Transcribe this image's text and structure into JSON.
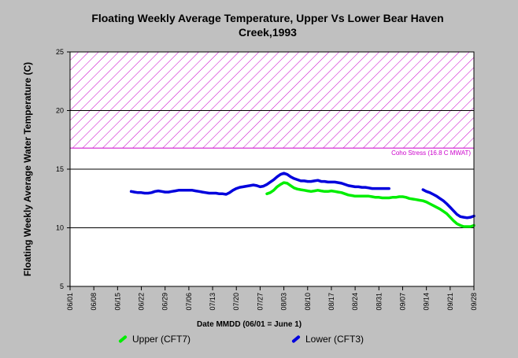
{
  "title_line1": "Floating Weekly Average Temperature, Upper Vs Lower Bear Haven",
  "title_line2": "Creek,1993",
  "colors": {
    "upper": "#00ee00",
    "lower": "#0000dd",
    "stress_band": "#cc00cc",
    "plot_bg": "#ffffff",
    "page_bg": "#c0c0c0"
  },
  "chart_data": {
    "type": "line",
    "title": "Floating Weekly Average Temperature, Upper Vs Lower Bear Haven Creek,1993",
    "xlabel": "Date MMDD (06/01 = June 1)",
    "ylabel": "Floating Weekly Average Water Temperature (C)",
    "ylim": [
      5,
      25
    ],
    "yticks": [
      5,
      10,
      15,
      20,
      25
    ],
    "xlim": [
      "06/01",
      "09/28"
    ],
    "xticks": [
      "06/01",
      "06/08",
      "06/15",
      "06/22",
      "06/29",
      "07/06",
      "07/13",
      "07/20",
      "07/27",
      "08/03",
      "08/10",
      "08/17",
      "08/24",
      "08/31",
      "09/07",
      "09/14",
      "09/21",
      "09/28"
    ],
    "grid": "horizontal",
    "legend_position": "bottom",
    "threshold_band": {
      "label": "Coho Stress (16.8 C MWAT)",
      "from": 16.8,
      "to": 25
    },
    "series": [
      {
        "name": "Upper (CFT7)",
        "color": "#00ee00",
        "points": [
          [
            "07/29",
            12.9
          ],
          [
            "07/30",
            13.0
          ],
          [
            "07/31",
            13.2
          ],
          [
            "08/01",
            13.5
          ],
          [
            "08/02",
            13.7
          ],
          [
            "08/03",
            13.85
          ],
          [
            "08/04",
            13.8
          ],
          [
            "08/05",
            13.6
          ],
          [
            "08/06",
            13.4
          ],
          [
            "08/07",
            13.3
          ],
          [
            "08/08",
            13.25
          ],
          [
            "08/09",
            13.2
          ],
          [
            "08/10",
            13.15
          ],
          [
            "08/11",
            13.1
          ],
          [
            "08/12",
            13.15
          ],
          [
            "08/13",
            13.2
          ],
          [
            "08/14",
            13.15
          ],
          [
            "08/15",
            13.1
          ],
          [
            "08/16",
            13.1
          ],
          [
            "08/17",
            13.15
          ],
          [
            "08/18",
            13.1
          ],
          [
            "08/19",
            13.05
          ],
          [
            "08/20",
            13.0
          ],
          [
            "08/21",
            12.9
          ],
          [
            "08/22",
            12.8
          ],
          [
            "08/23",
            12.75
          ],
          [
            "08/24",
            12.7
          ],
          [
            "08/25",
            12.7
          ],
          [
            "08/26",
            12.7
          ],
          [
            "08/27",
            12.7
          ],
          [
            "08/28",
            12.7
          ],
          [
            "08/29",
            12.65
          ],
          [
            "08/30",
            12.6
          ],
          [
            "08/31",
            12.6
          ],
          [
            "09/01",
            12.55
          ],
          [
            "09/02",
            12.55
          ],
          [
            "09/03",
            12.55
          ],
          [
            "09/04",
            12.6
          ],
          [
            "09/05",
            12.6
          ],
          [
            "09/06",
            12.65
          ],
          [
            "09/07",
            12.65
          ],
          [
            "09/08",
            12.6
          ],
          [
            "09/09",
            12.5
          ],
          [
            "09/10",
            12.45
          ],
          [
            "09/11",
            12.4
          ],
          [
            "09/12",
            12.35
          ],
          [
            "09/13",
            12.3
          ],
          [
            "09/14",
            12.2
          ],
          [
            "09/15",
            12.05
          ],
          [
            "09/16",
            11.9
          ],
          [
            "09/17",
            11.75
          ],
          [
            "09/18",
            11.6
          ],
          [
            "09/19",
            11.4
          ],
          [
            "09/20",
            11.2
          ],
          [
            "09/21",
            10.9
          ],
          [
            "09/22",
            10.6
          ],
          [
            "09/23",
            10.35
          ],
          [
            "09/24",
            10.2
          ],
          [
            "09/25",
            10.1
          ],
          [
            "09/26",
            10.1
          ],
          [
            "09/27",
            10.1
          ],
          [
            "09/28",
            10.2
          ]
        ]
      },
      {
        "name": "Lower (CFT3)",
        "color": "#0000dd",
        "segments": [
          [
            [
              "06/19",
              13.1
            ],
            [
              "06/20",
              13.05
            ],
            [
              "06/21",
              13.0
            ],
            [
              "06/22",
              13.0
            ],
            [
              "06/23",
              12.95
            ],
            [
              "06/24",
              12.95
            ],
            [
              "06/25",
              13.0
            ],
            [
              "06/26",
              13.1
            ],
            [
              "06/27",
              13.15
            ],
            [
              "06/28",
              13.1
            ],
            [
              "06/29",
              13.05
            ],
            [
              "06/30",
              13.05
            ],
            [
              "07/01",
              13.1
            ],
            [
              "07/02",
              13.15
            ],
            [
              "07/03",
              13.2
            ],
            [
              "07/04",
              13.2
            ],
            [
              "07/05",
              13.2
            ],
            [
              "07/06",
              13.2
            ],
            [
              "07/07",
              13.2
            ],
            [
              "07/08",
              13.15
            ],
            [
              "07/09",
              13.1
            ],
            [
              "07/10",
              13.05
            ],
            [
              "07/11",
              13.0
            ],
            [
              "07/12",
              12.95
            ],
            [
              "07/13",
              12.95
            ],
            [
              "07/14",
              12.95
            ],
            [
              "07/15",
              12.9
            ],
            [
              "07/16",
              12.9
            ],
            [
              "07/17",
              12.85
            ],
            [
              "07/18",
              13.0
            ],
            [
              "07/19",
              13.2
            ],
            [
              "07/20",
              13.35
            ],
            [
              "07/21",
              13.45
            ],
            [
              "07/22",
              13.5
            ],
            [
              "07/23",
              13.55
            ],
            [
              "07/24",
              13.6
            ],
            [
              "07/25",
              13.65
            ],
            [
              "07/26",
              13.6
            ],
            [
              "07/27",
              13.5
            ],
            [
              "07/28",
              13.55
            ],
            [
              "07/29",
              13.7
            ],
            [
              "07/30",
              13.9
            ],
            [
              "07/31",
              14.1
            ],
            [
              "08/01",
              14.35
            ],
            [
              "08/02",
              14.55
            ],
            [
              "08/03",
              14.65
            ],
            [
              "08/04",
              14.55
            ],
            [
              "08/05",
              14.35
            ],
            [
              "08/06",
              14.2
            ],
            [
              "08/07",
              14.1
            ],
            [
              "08/08",
              14.0
            ],
            [
              "08/09",
              14.0
            ],
            [
              "08/10",
              13.95
            ],
            [
              "08/11",
              13.95
            ],
            [
              "08/12",
              14.0
            ],
            [
              "08/13",
              14.05
            ],
            [
              "08/14",
              13.95
            ],
            [
              "08/15",
              13.95
            ],
            [
              "08/16",
              13.9
            ],
            [
              "08/17",
              13.9
            ],
            [
              "08/18",
              13.9
            ],
            [
              "08/19",
              13.85
            ],
            [
              "08/20",
              13.8
            ],
            [
              "08/21",
              13.7
            ],
            [
              "08/22",
              13.6
            ],
            [
              "08/23",
              13.55
            ],
            [
              "08/24",
              13.5
            ],
            [
              "08/25",
              13.5
            ],
            [
              "08/26",
              13.45
            ],
            [
              "08/27",
              13.45
            ],
            [
              "08/28",
              13.4
            ],
            [
              "08/29",
              13.35
            ],
            [
              "08/30",
              13.35
            ],
            [
              "08/31",
              13.35
            ],
            [
              "09/01",
              13.35
            ],
            [
              "09/02",
              13.35
            ],
            [
              "09/03",
              13.35
            ]
          ],
          [
            [
              "09/13",
              13.25
            ],
            [
              "09/14",
              13.1
            ],
            [
              "09/15",
              13.0
            ],
            [
              "09/16",
              12.85
            ],
            [
              "09/17",
              12.7
            ],
            [
              "09/18",
              12.5
            ],
            [
              "09/19",
              12.3
            ],
            [
              "09/20",
              12.05
            ],
            [
              "09/21",
              11.75
            ],
            [
              "09/22",
              11.45
            ],
            [
              "09/23",
              11.15
            ],
            [
              "09/24",
              10.95
            ],
            [
              "09/25",
              10.9
            ],
            [
              "09/26",
              10.85
            ],
            [
              "09/27",
              10.9
            ],
            [
              "09/28",
              11.0
            ]
          ]
        ]
      }
    ]
  }
}
